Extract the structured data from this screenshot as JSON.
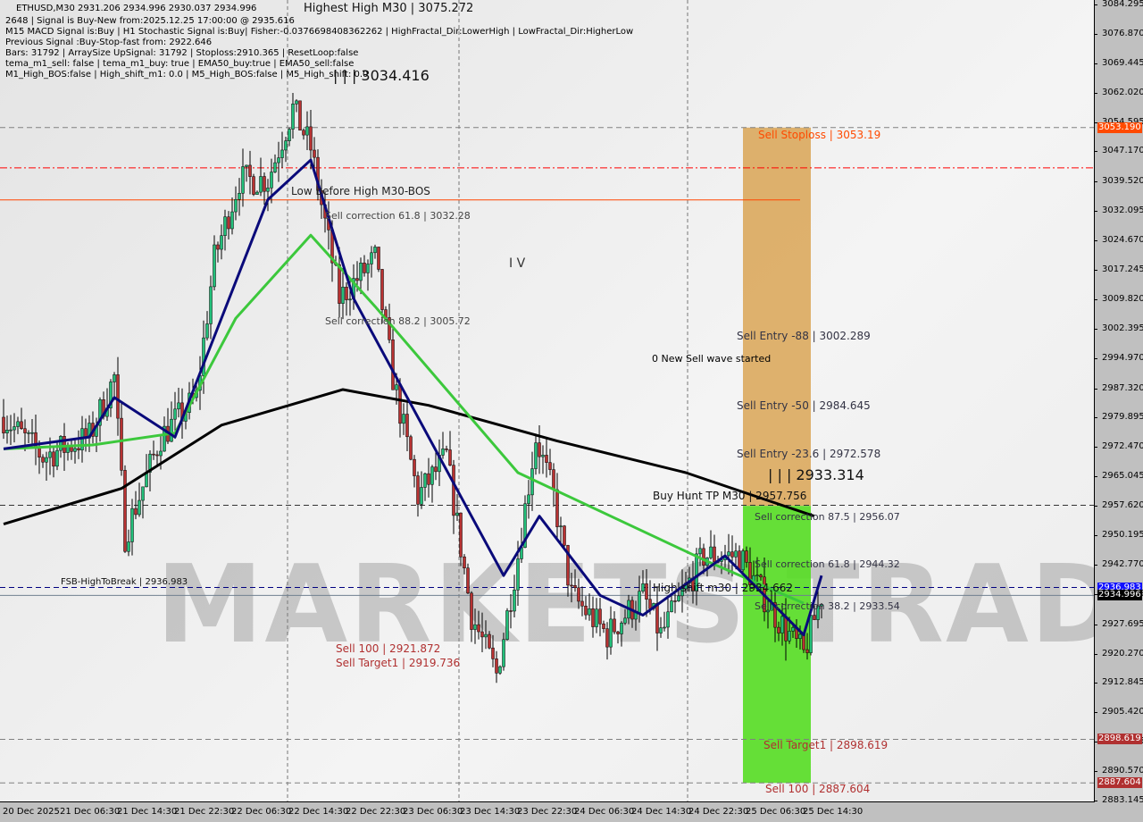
{
  "header": {
    "symbol_line": "ETHUSD,M30  2931.206 2934.996 2930.037 2934.996",
    "lines": [
      "2648 | Signal is Buy-New from:2025.12.25 17:00:00 @ 2935.616",
      "M15 MACD Signal is:Buy | H1 Stochastic Signal is:Buy| Fisher:-0.0376698408362262 | HighFractal_Dir:LowerHigh | LowFractal_Dir:HigherLow",
      "Previous Signal :Buy-Stop-fast from: 2922.646",
      "Bars: 31792 | ArraySize UpSignal: 31792 | Stoploss:2910.365 | ResetLoop:false",
      "tema_m1_sell: false | tema_m1_buy: true | EMA50_buy:true | EMA50_sell:false",
      "M1_High_BOS:false | High_shift_m1: 0.0 | M5_High_BOS:false | M5_High_shift: 0.0"
    ]
  },
  "watermark": "MARKETS TRADE",
  "annotations": {
    "highest_high": "Highest High   M30 | 3075.272",
    "level_3034": "| | | 3034.416",
    "low_before_high": "Low before High   M30-BOS",
    "sell_corr_618_a": "Sell correction 61.8 | 3032.28",
    "sell_corr_882_a": "Sell correction 88.2 | 3005.72",
    "wave_iv": "I V",
    "new_sell_wave": "0 New Sell wave started",
    "sell_stoploss": "Sell Stoploss | 3053.19",
    "sell_entry_88": "Sell Entry -88 | 3002.289",
    "sell_entry_50": "Sell Entry -50 | 2984.645",
    "sell_entry_236": "Sell Entry -23.6 | 2972.578",
    "level_2933": "| | | 2933.314",
    "buy_hunt_tp": "Buy Hunt TP M30 | 2957.756",
    "sell_corr_875": "Sell correction 87.5 | 2956.07",
    "sell_corr_618_b": "Sell correction 61.8 | 2944.32",
    "high_shift": "High shift m30 | 2934.662",
    "sell_corr_382": "Sell correction 38.2 | 2933.54",
    "fsb": "FSB-HighToBreak | 2936.983",
    "sell_100_a": "Sell 100 | 2921.872",
    "sell_target1_a": "Sell Target1 | 2919.736",
    "sell_target1_b": "Sell Target1 | 2898.619",
    "sell_100_b": "Sell 100 | 2887.604"
  },
  "colors": {
    "bull": "#22c07a",
    "bear": "#b83232",
    "ema_fast": "#0a0a7a",
    "ema_mid": "#3cc83c",
    "ma_slow": "#000000",
    "stoploss_zone": "#d9a455",
    "target_zone": "#55dd22",
    "tag_stop": "#ff4a00",
    "tag_fsb": "#1010ff",
    "tag_price": "#000000",
    "tag_target": "#b03030"
  },
  "chart_data": {
    "type": "candlestick",
    "timeframe": "M30",
    "symbol": "ETHUSD",
    "ylim": [
      2883.145,
      3084.295
    ],
    "y_ticks": [
      "3084.295",
      "3076.870",
      "3069.445",
      "3062.020",
      "3054.595",
      "3047.170",
      "3039.520",
      "3032.095",
      "3024.670",
      "3017.245",
      "3009.820",
      "3002.395",
      "2994.970",
      "2987.320",
      "2979.895",
      "2972.470",
      "2965.045",
      "2957.620",
      "2950.195",
      "2942.770",
      "2935.345",
      "2927.695",
      "2920.270",
      "2912.845",
      "2905.420",
      "2897.995",
      "2890.570",
      "2883.145"
    ],
    "x_ticks": [
      "20 Dec 2025",
      "21 Dec 06:30",
      "21 Dec 14:30",
      "21 Dec 22:30",
      "22 Dec 06:30",
      "22 Dec 14:30",
      "22 Dec 22:30",
      "23 Dec 06:30",
      "23 Dec 14:30",
      "23 Dec 22:30",
      "24 Dec 06:30",
      "24 Dec 14:30",
      "24 Dec 22:30",
      "25 Dec 06:30",
      "25 Dec 14:30"
    ],
    "price_tags": [
      {
        "value": "3053.190",
        "kind": "stop"
      },
      {
        "value": "2936.983",
        "kind": "fsb"
      },
      {
        "value": "2934.996",
        "kind": "price"
      },
      {
        "value": "2898.619",
        "kind": "target"
      },
      {
        "value": "2887.604",
        "kind": "target"
      }
    ],
    "close_path_approx": [
      [
        "20 22:30",
        2980
      ],
      [
        "21 04:00",
        2970
      ],
      [
        "21 10:30",
        2975
      ],
      [
        "21 14:00",
        2990
      ],
      [
        "21 15:30",
        2950
      ],
      [
        "21 20:30",
        2975
      ],
      [
        "22 01:30",
        2985
      ],
      [
        "22 04:00",
        3020
      ],
      [
        "22 07:30",
        3040
      ],
      [
        "22 11:30",
        3040
      ],
      [
        "22 15:00",
        3058
      ],
      [
        "22 17:30",
        3048
      ],
      [
        "22 21:30",
        3010
      ],
      [
        "23 02:30",
        3020
      ],
      [
        "23 05:00",
        2990
      ],
      [
        "23 08:30",
        2960
      ],
      [
        "23 12:30",
        2970
      ],
      [
        "23 16:00",
        2930
      ],
      [
        "23 19:30",
        2915
      ],
      [
        "23 22:30",
        2945
      ],
      [
        "24 01:00",
        2975
      ],
      [
        "24 03:30",
        2960
      ],
      [
        "24 06:00",
        2935
      ],
      [
        "24 11:00",
        2925
      ],
      [
        "24 16:00",
        2935
      ],
      [
        "24 18:30",
        2925
      ],
      [
        "25 00:30",
        2945
      ],
      [
        "25 05:30",
        2945
      ],
      [
        "25 10:30",
        2930
      ],
      [
        "25 14:30",
        2920
      ],
      [
        "25 17:00",
        2935
      ]
    ],
    "ema_fast_approx": [
      [
        "20 22:30",
        2972
      ],
      [
        "21 10:30",
        2975
      ],
      [
        "21 14:00",
        2985
      ],
      [
        "21 22:30",
        2975
      ],
      [
        "22 11:30",
        3035
      ],
      [
        "22 17:30",
        3045
      ],
      [
        "22 23:30",
        3010
      ],
      [
        "23 07:00",
        2985
      ],
      [
        "23 14:30",
        2960
      ],
      [
        "23 20:30",
        2940
      ],
      [
        "24 01:30",
        2955
      ],
      [
        "24 10:00",
        2935
      ],
      [
        "24 16:00",
        2930
      ],
      [
        "25 03:30",
        2945
      ],
      [
        "25 14:30",
        2925
      ],
      [
        "25 17:00",
        2940
      ]
    ],
    "ema_mid_approx": [
      [
        "20 22:30",
        2972
      ],
      [
        "21 11:00",
        2973
      ],
      [
        "21 22:30",
        2976
      ],
      [
        "22 07:00",
        3005
      ],
      [
        "22 17:30",
        3026
      ],
      [
        "23 02:30",
        3008
      ],
      [
        "23 22:30",
        2966
      ],
      [
        "25 00:30",
        2944
      ],
      [
        "25 14:30",
        2933
      ]
    ],
    "ma_slow_approx": [
      [
        "20 22:30",
        2953
      ],
      [
        "21 15:00",
        2962
      ],
      [
        "22 05:00",
        2978
      ],
      [
        "22 22:00",
        2987
      ],
      [
        "23 10:00",
        2983
      ],
      [
        "24 04:00",
        2974
      ],
      [
        "24 22:00",
        2966
      ],
      [
        "25 16:00",
        2955
      ]
    ],
    "zones": [
      {
        "name": "sell stoploss zone",
        "from": 2957.6,
        "to": 3053.19,
        "start": "25 06:30",
        "end": "25 15:30"
      },
      {
        "name": "sell target zone",
        "from": 2887.604,
        "to": 2957.6,
        "start": "25 06:30",
        "end": "25 15:30"
      }
    ],
    "hlines": [
      {
        "value": 3053.19,
        "style": "dashed",
        "color": "#808080"
      },
      {
        "value": 3043.0,
        "style": "dashdot",
        "color": "#ff0000"
      },
      {
        "value": 3034.9,
        "style": "solid",
        "color": "#ff4500",
        "end": "25 14:00"
      },
      {
        "value": 2957.756,
        "style": "dashed",
        "color": "#333333"
      },
      {
        "value": 2936.983,
        "style": "dashed",
        "color": "#000080"
      },
      {
        "value": 2934.996,
        "style": "solid",
        "color": "#708090"
      },
      {
        "value": 2898.619,
        "style": "dashed",
        "color": "#808080"
      },
      {
        "value": 2887.604,
        "style": "dashed",
        "color": "#808080"
      }
    ]
  }
}
